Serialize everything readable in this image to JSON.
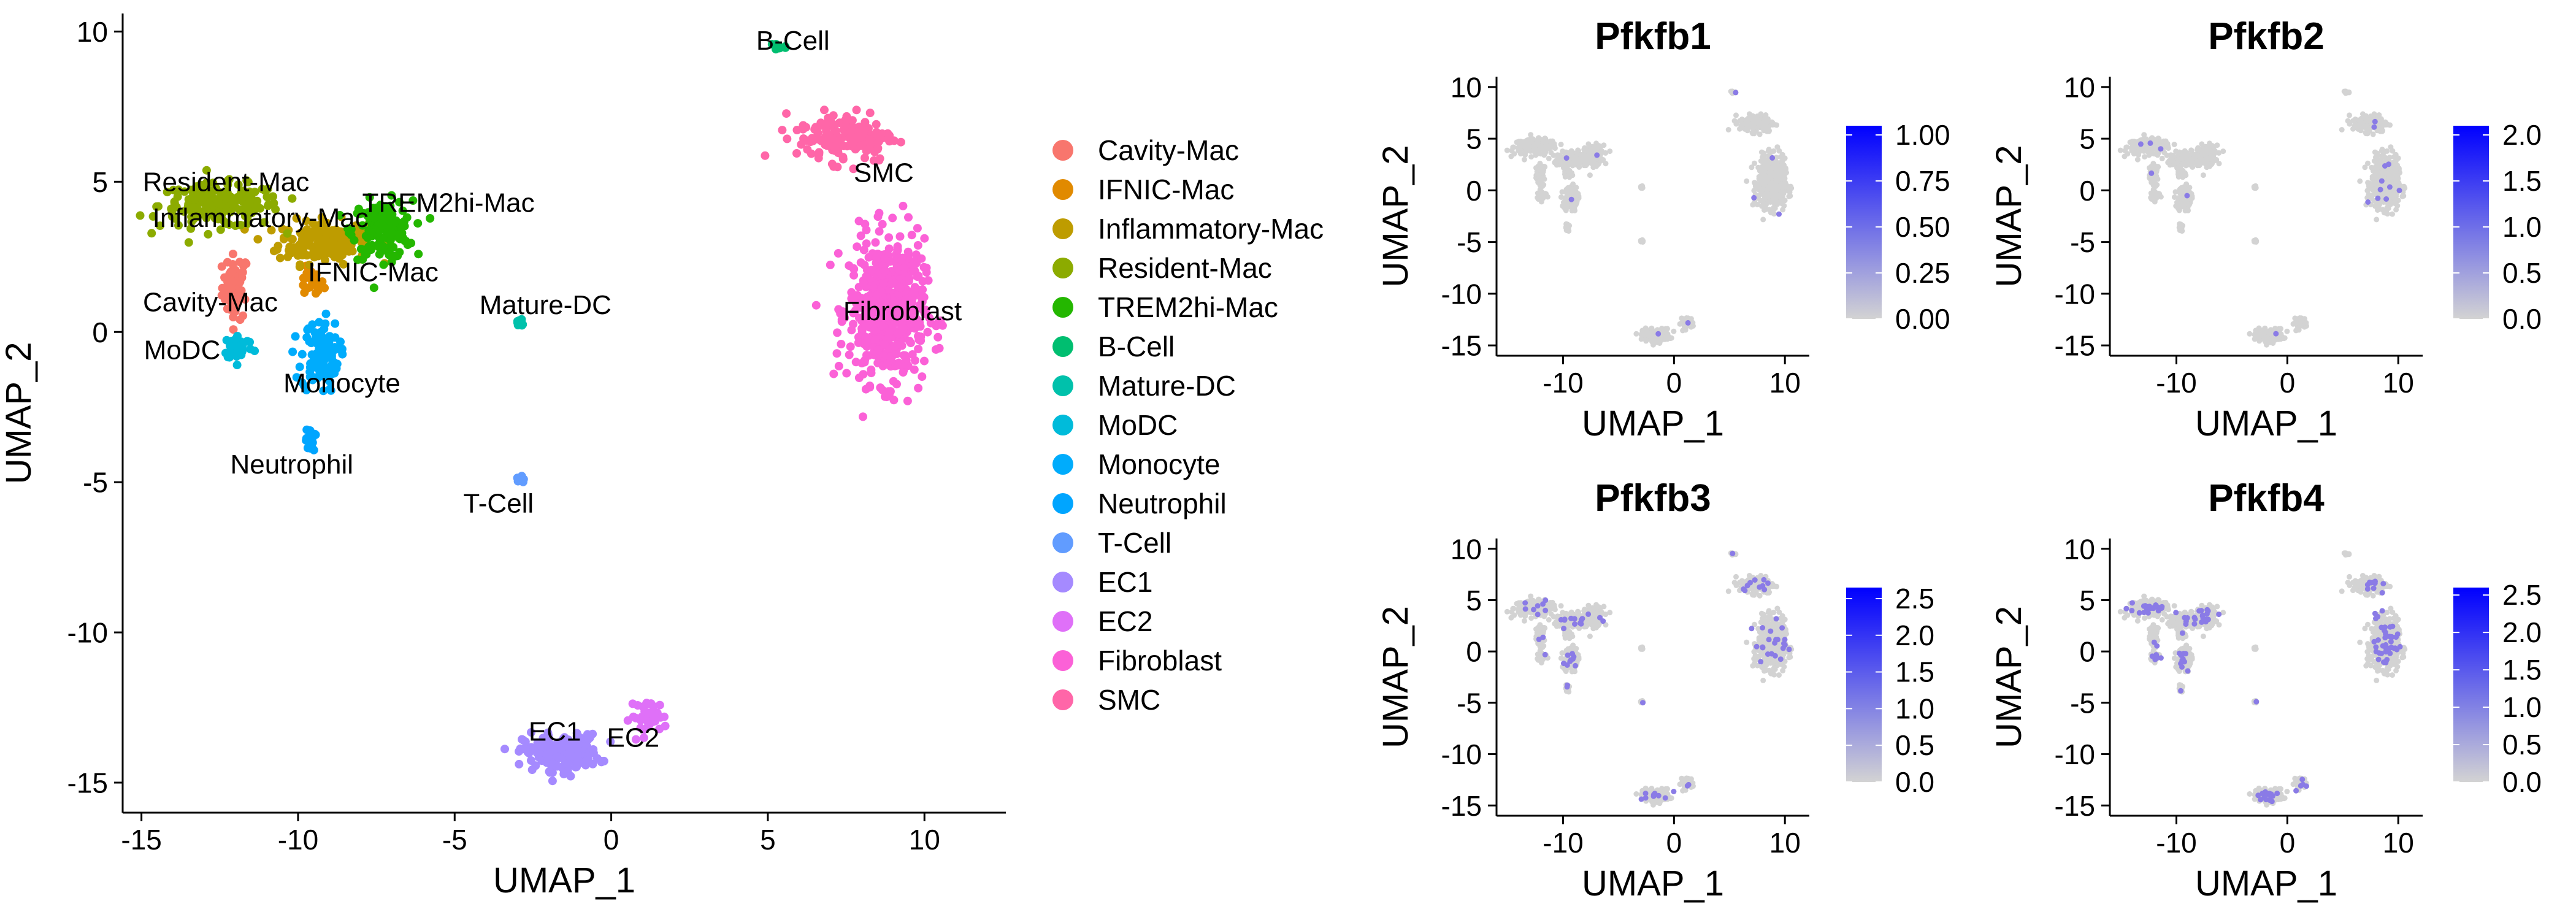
{
  "chart_data": [
    {
      "type": "scatter",
      "xlabel": "UMAP_1",
      "ylabel": "UMAP_2",
      "xlim": [
        -15.6,
        12.6
      ],
      "ylim": [
        -16.0,
        10.6
      ],
      "xticks": [
        -15,
        -10,
        -5,
        0,
        5,
        10
      ],
      "yticks": [
        10,
        5,
        0,
        -5,
        -10,
        -15
      ],
      "xtick_labels": [
        "-15",
        "-10",
        "-5",
        "0",
        "5",
        "10"
      ],
      "ytick_labels": [
        "10",
        "5",
        "0",
        "-5",
        "-10",
        "-15"
      ],
      "grid": false,
      "legend": "right",
      "series": [
        {
          "name": "Cavity-Mac",
          "color": "#F8766D",
          "center": [
            -12.0,
            1.5
          ],
          "spread": [
            0.35,
            0.9
          ],
          "count": 60
        },
        {
          "name": "IFNIC-Mac",
          "color": "#E18A00",
          "center": [
            -9.6,
            1.6
          ],
          "spread": [
            0.35,
            0.4
          ],
          "count": 20
        },
        {
          "name": "Inflammatory-Mac",
          "color": "#BE9C00",
          "center": [
            -9.2,
            3.0
          ],
          "spread": [
            1.2,
            0.6
          ],
          "count": 180
        },
        {
          "name": "Resident-Mac",
          "color": "#8CAB00",
          "center": [
            -12.5,
            4.2
          ],
          "spread": [
            1.6,
            0.6
          ],
          "count": 200
        },
        {
          "name": "TREM2hi-Mac",
          "color": "#24B700",
          "center": [
            -7.3,
            3.4
          ],
          "spread": [
            0.8,
            0.8
          ],
          "count": 150
        },
        {
          "name": "B-Cell",
          "color": "#00BE70",
          "center": [
            5.3,
            9.5
          ],
          "spread": [
            0.25,
            0.15
          ],
          "count": 14
        },
        {
          "name": "Mature-DC",
          "color": "#00C1AB",
          "center": [
            -2.9,
            0.3
          ],
          "spread": [
            0.15,
            0.15
          ],
          "count": 10
        },
        {
          "name": "MoDC",
          "color": "#00BBDA",
          "center": [
            -11.9,
            -0.5
          ],
          "spread": [
            0.4,
            0.35
          ],
          "count": 40
        },
        {
          "name": "Monocyte",
          "color": "#00ACFC",
          "center": [
            -9.3,
            -0.8
          ],
          "spread": [
            0.5,
            1.0
          ],
          "count": 110
        },
        {
          "name": "Neutrophil",
          "color": "#00A5FF",
          "center": [
            -9.6,
            -3.6
          ],
          "spread": [
            0.12,
            0.3
          ],
          "count": 25
        },
        {
          "name": "T-Cell",
          "color": "#619CFF",
          "center": [
            -2.9,
            -4.9
          ],
          "spread": [
            0.1,
            0.12
          ],
          "count": 8
        },
        {
          "name": "EC1",
          "color": "#A58AFF",
          "center": [
            -1.6,
            -14.0
          ],
          "spread": [
            1.0,
            0.5
          ],
          "count": 200
        },
        {
          "name": "EC2",
          "color": "#DF70F8",
          "center": [
            1.2,
            -12.8
          ],
          "spread": [
            0.5,
            0.45
          ],
          "count": 40
        },
        {
          "name": "Fibroblast",
          "color": "#FB61D7",
          "center": [
            8.8,
            0.7
          ],
          "spread": [
            1.0,
            2.0
          ],
          "count": 550
        },
        {
          "name": "SMC",
          "color": "#FF66A8",
          "center": [
            7.5,
            6.5
          ],
          "spread": [
            1.3,
            0.7
          ],
          "count": 150
        }
      ],
      "annotations": [
        {
          "text": "B-Cell",
          "x": 5.8,
          "y": 9.7
        },
        {
          "text": "SMC",
          "x": 8.7,
          "y": 5.3
        },
        {
          "text": "Resident-Mac",
          "x": -12.3,
          "y": 5.0
        },
        {
          "text": "Inflammatory-Mac",
          "x": -11.2,
          "y": 3.8
        },
        {
          "text": "TREM2hi-Mac",
          "x": -5.2,
          "y": 4.3
        },
        {
          "text": "IFNIC-Mac",
          "x": -7.6,
          "y": 2.0
        },
        {
          "text": "Cavity-Mac",
          "x": -12.8,
          "y": 1.0
        },
        {
          "text": "Mature-DC",
          "x": -2.1,
          "y": 0.9
        },
        {
          "text": "Fibroblast",
          "x": 9.3,
          "y": 0.7
        },
        {
          "text": "MoDC",
          "x": -13.7,
          "y": -0.6
        },
        {
          "text": "Monocyte",
          "x": -8.6,
          "y": -1.7
        },
        {
          "text": "Neutrophil",
          "x": -10.2,
          "y": -4.4
        },
        {
          "text": "T-Cell",
          "x": -3.6,
          "y": -5.7
        },
        {
          "text": "EC1",
          "x": -1.8,
          "y": -13.3
        },
        {
          "text": "EC2",
          "x": 0.7,
          "y": -13.5
        }
      ]
    },
    {
      "type": "scatter",
      "title": "Pfkfb1",
      "xlabel": "UMAP_1",
      "ylabel": "UMAP_2",
      "xlim": [
        -16.0,
        12.2
      ],
      "ylim": [
        -16.0,
        11.0
      ],
      "xticks": [
        -10,
        0,
        10
      ],
      "yticks": [
        10,
        5,
        0,
        -5,
        -10,
        -15
      ],
      "xtick_labels": [
        "-10",
        "0",
        "10"
      ],
      "ytick_labels": [
        "10",
        "5",
        "0",
        "-5",
        "-10",
        "-15"
      ],
      "colorbar": {
        "min": 0.0,
        "max": 1.05,
        "ticks": [
          1.0,
          0.75,
          0.5,
          0.25,
          0.0
        ],
        "tick_labels": [
          "1.00",
          "0.75",
          "0.50",
          "0.25",
          "0.00"
        ],
        "low_color": "#D3D3D3",
        "high_color": "#0000FF"
      },
      "expression_fraction": 0.004
    },
    {
      "type": "scatter",
      "title": "Pfkfb2",
      "xlabel": "UMAP_1",
      "ylabel": "UMAP_2",
      "xlim": [
        -16.0,
        12.2
      ],
      "ylim": [
        -16.0,
        11.0
      ],
      "xticks": [
        -10,
        0,
        10
      ],
      "yticks": [
        10,
        5,
        0,
        -5,
        -10,
        -15
      ],
      "xtick_labels": [
        "-10",
        "0",
        "10"
      ],
      "ytick_labels": [
        "10",
        "5",
        "0",
        "-5",
        "-10",
        "-15"
      ],
      "colorbar": {
        "min": 0.0,
        "max": 2.1,
        "ticks": [
          2.0,
          1.5,
          1.0,
          0.5,
          0.0
        ],
        "tick_labels": [
          "2.0",
          "1.5",
          "1.0",
          "0.5",
          "0.0"
        ],
        "low_color": "#D3D3D3",
        "high_color": "#0000FF"
      },
      "expression_fraction": 0.006
    },
    {
      "type": "scatter",
      "title": "Pfkfb3",
      "xlabel": "UMAP_1",
      "ylabel": "UMAP_2",
      "xlim": [
        -16.0,
        12.2
      ],
      "ylim": [
        -16.0,
        11.0
      ],
      "xticks": [
        -10,
        0,
        10
      ],
      "yticks": [
        10,
        5,
        0,
        -5,
        -10,
        -15
      ],
      "xtick_labels": [
        "-10",
        "0",
        "10"
      ],
      "ytick_labels": [
        "10",
        "5",
        "0",
        "-5",
        "-10",
        "-15"
      ],
      "colorbar": {
        "min": 0.0,
        "max": 2.65,
        "ticks": [
          2.5,
          2.0,
          1.5,
          1.0,
          0.5,
          0.0
        ],
        "tick_labels": [
          "2.5",
          "2.0",
          "1.5",
          "1.0",
          "0.5",
          "0.0"
        ],
        "low_color": "#D3D3D3",
        "high_color": "#0000FF"
      },
      "expression_fraction": 0.04
    },
    {
      "type": "scatter",
      "title": "Pfkfb4",
      "xlabel": "UMAP_1",
      "ylabel": "UMAP_2",
      "xlim": [
        -16.0,
        12.2
      ],
      "ylim": [
        -16.0,
        11.0
      ],
      "xticks": [
        -10,
        0,
        10
      ],
      "yticks": [
        10,
        5,
        0,
        -5,
        -10,
        -15
      ],
      "xtick_labels": [
        "-10",
        "0",
        "10"
      ],
      "ytick_labels": [
        "10",
        "5",
        "0",
        "-5",
        "-10",
        "-15"
      ],
      "colorbar": {
        "min": 0.0,
        "max": 2.6,
        "ticks": [
          2.5,
          2.0,
          1.5,
          1.0,
          0.5,
          0.0
        ],
        "tick_labels": [
          "2.5",
          "2.0",
          "1.5",
          "1.0",
          "0.5",
          "0.0"
        ],
        "low_color": "#D3D3D3",
        "high_color": "#0000FF"
      },
      "expression_fraction": 0.07
    }
  ]
}
